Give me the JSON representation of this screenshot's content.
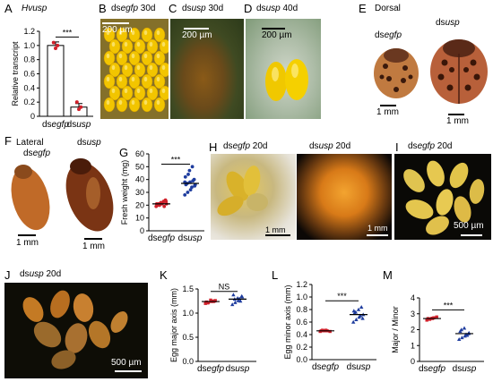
{
  "colors": {
    "ctrl_point": "#d0202a",
    "trt_point": "#1e3c9e",
    "photo_dark": "#0b0a06",
    "photo_bright": "#f4efe8",
    "egg_yellow": "#f2c500",
    "egg_pale": "#e5c44c",
    "beetle_orange": "#c86a2a"
  },
  "panels": {
    "A": {
      "letter": "A",
      "title": "Hvusp",
      "signif": "***"
    },
    "B": {
      "letter": "B",
      "prefix": "ds",
      "gene": "egfp",
      "day": " 30d",
      "scale": "200 µm"
    },
    "C": {
      "letter": "C",
      "prefix": "ds",
      "gene": "usp",
      "day": " 30d",
      "scale": "200 µm"
    },
    "D": {
      "letter": "D",
      "prefix": "ds",
      "gene": "usp",
      "day": "  40d",
      "scale": "200 µm"
    },
    "E": {
      "letter": "E",
      "title": "Dorsal",
      "ctrl_prefix": "ds",
      "ctrl_gene": "egfp",
      "trt_prefix": "ds",
      "trt_gene": "usp",
      "scale1": "1 mm",
      "scale2": "1 mm"
    },
    "F": {
      "letter": "F",
      "title": "Lateral",
      "ctrl_prefix": "ds",
      "ctrl_gene": "egfp",
      "trt_prefix": "ds",
      "trt_gene": "usp",
      "scale1": "1 mm",
      "scale2": "1 mm"
    },
    "G": {
      "letter": "G",
      "signif": "***"
    },
    "H": {
      "letter": "H",
      "prefix1": "ds",
      "gene1": "egfp",
      "day1": " 20d",
      "prefix2": "ds",
      "gene2": "usp",
      "day2": " 20d",
      "scale1": "1 mm",
      "scale2": "1 mm"
    },
    "I": {
      "letter": "I",
      "prefix": "ds",
      "gene": "egfp",
      "day": " 20d",
      "scale": "500 µm"
    },
    "J": {
      "letter": "J",
      "prefix": "ds",
      "gene": "usp",
      "day": " 20d",
      "scale": "500 µm"
    },
    "K": {
      "letter": "K",
      "signif": "NS"
    },
    "L": {
      "letter": "L",
      "signif": "***"
    },
    "M": {
      "letter": "M",
      "signif": "***"
    }
  },
  "chart_data": [
    {
      "id": "A",
      "type": "bar",
      "ylabel": "Relative transcript",
      "categories": [
        "dsegfp",
        "dsusp"
      ],
      "cat_prefix": [
        "ds",
        "ds"
      ],
      "cat_gene": [
        "egfp",
        "usp"
      ],
      "values": [
        1.0,
        0.13
      ],
      "errors": [
        0.05,
        0.05
      ],
      "points": [
        [
          1.04,
          0.96,
          1.0
        ],
        [
          0.2,
          0.1,
          0.13
        ]
      ],
      "ylim": [
        0,
        1.2
      ],
      "yticks": [
        "0",
        "0.2",
        "0.4",
        "0.6",
        "0.8",
        "1.0",
        "1.2"
      ]
    },
    {
      "id": "G",
      "type": "scatter",
      "ylabel": "Fresh weight (mg)",
      "categories": [
        "dsegfp",
        "dsusp"
      ],
      "cat_prefix": [
        "ds",
        "ds"
      ],
      "cat_gene": [
        "egfp",
        "usp"
      ],
      "ylim": [
        0,
        60
      ],
      "yticks": [
        "0",
        "10",
        "20",
        "30",
        "40",
        "50",
        "60"
      ],
      "means": [
        21,
        37
      ],
      "points": [
        [
          19,
          20,
          21,
          22,
          23,
          20,
          21,
          22,
          19,
          24,
          21,
          20,
          22,
          23,
          21
        ],
        [
          28,
          30,
          32,
          34,
          35,
          36,
          37,
          38,
          39,
          40,
          42,
          44,
          47,
          50,
          36,
          38
        ]
      ]
    },
    {
      "id": "K",
      "type": "scatter",
      "ylabel": "Egg major axis (mm)",
      "categories": [
        "dsegfp",
        "dsusp"
      ],
      "cat_prefix": [
        "ds",
        "ds"
      ],
      "cat_gene": [
        "egfp",
        "usp"
      ],
      "ylim": [
        0,
        1.5
      ],
      "yticks": [
        "0.0",
        "0.5",
        "1.0",
        "1.5"
      ],
      "means": [
        1.24,
        1.29
      ],
      "points": [
        [
          1.2,
          1.22,
          1.24,
          1.25,
          1.26,
          1.23,
          1.21,
          1.27,
          1.24,
          1.25
        ],
        [
          1.18,
          1.22,
          1.26,
          1.3,
          1.34,
          1.38,
          1.29,
          1.31,
          1.25,
          1.35
        ]
      ]
    },
    {
      "id": "L",
      "type": "scatter",
      "ylabel": "Egg minor axis (mm)",
      "categories": [
        "dsegfp",
        "dsusp"
      ],
      "cat_prefix": [
        "ds",
        "ds"
      ],
      "cat_gene": [
        "egfp",
        "usp"
      ],
      "ylim": [
        0,
        1.2
      ],
      "yticks": [
        "0.0",
        "0.2",
        "0.4",
        "0.6",
        "0.8",
        "1.0",
        "1.2"
      ],
      "means": [
        0.46,
        0.72
      ],
      "points": [
        [
          0.45,
          0.46,
          0.47,
          0.46,
          0.45,
          0.46,
          0.47,
          0.46
        ],
        [
          0.6,
          0.64,
          0.68,
          0.7,
          0.72,
          0.74,
          0.76,
          0.8,
          0.84,
          0.66,
          0.78
        ]
      ]
    },
    {
      "id": "M",
      "type": "scatter",
      "ylabel": "Major / Minor",
      "categories": [
        "dsegfp",
        "dsusp"
      ],
      "cat_prefix": [
        "ds",
        "ds"
      ],
      "cat_gene": [
        "egfp",
        "usp"
      ],
      "ylim": [
        0,
        4
      ],
      "yticks": [
        "0",
        "1",
        "2",
        "3",
        "4"
      ],
      "means": [
        2.7,
        1.75
      ],
      "points": [
        [
          2.6,
          2.65,
          2.7,
          2.75,
          2.8,
          2.7,
          2.68,
          2.72
        ],
        [
          1.4,
          1.5,
          1.6,
          1.7,
          1.8,
          1.9,
          2.0,
          2.1,
          1.65,
          1.75
        ]
      ]
    }
  ]
}
